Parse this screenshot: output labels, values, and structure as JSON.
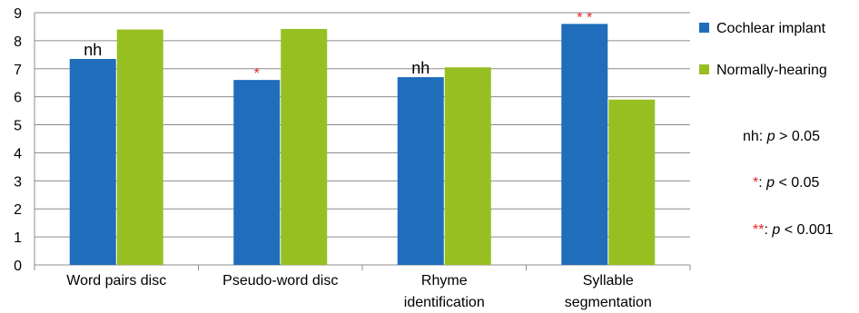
{
  "colors": {
    "cochlear": "#1f6dbb",
    "normal": "#98bf21",
    "significance": "#e3262a",
    "grid": "#8c8c8c"
  },
  "chart_data": {
    "type": "bar",
    "title": "",
    "xlabel": "",
    "ylabel": "",
    "ylim": [
      0,
      9
    ],
    "yticks": [
      0,
      1,
      2,
      3,
      4,
      5,
      6,
      7,
      8,
      9
    ],
    "grid": true,
    "legend_position": "right",
    "categories": [
      [
        "Word pairs disc"
      ],
      [
        "Pseudo-word disc"
      ],
      [
        "Rhyme",
        "identification"
      ],
      [
        "Syllable",
        "segmentation"
      ]
    ],
    "series": [
      {
        "name": "Cochlear implant",
        "color": "#1f6dbb",
        "values": [
          7.35,
          6.6,
          6.7,
          8.6
        ]
      },
      {
        "name": "Normally-hearing",
        "color": "#98bf21",
        "values": [
          8.4,
          8.42,
          7.05,
          5.9
        ]
      }
    ],
    "annotations": [
      "nh",
      "*",
      "nh",
      "* *"
    ]
  },
  "notes": {
    "nh_prefix": "nh: ",
    "nh_p": "p",
    "nh_rest": " > 0.05",
    "star_sym": "*",
    "star_colon": ": ",
    "star_p": "p",
    "star_rest": " < 0.05",
    "dstar_sym": "**",
    "dstar_colon": ": ",
    "dstar_p": "p",
    "dstar_rest": " < 0.001"
  }
}
